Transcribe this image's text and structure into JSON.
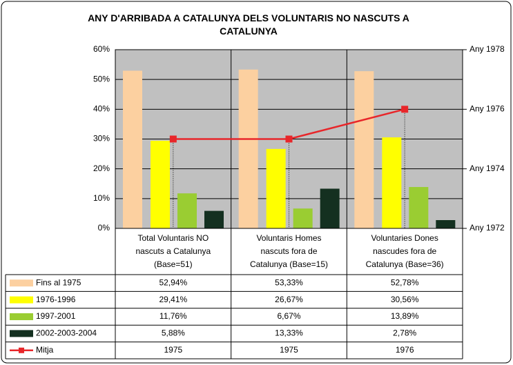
{
  "chart_data": {
    "type": "bar",
    "title": "ANY D'ARRIBADA A CATALUNYA DELS VOLUNTARIS NO NASCUTS A CATALUNYA",
    "categories": [
      "Total Voluntaris NO nascuts a Catalunya (Base=51)",
      "Voluntaris Homes nascuts fora de Catalunya (Base=15)",
      "Voluntaries Dones nascudes fora de Catalunya (Base=36)"
    ],
    "series": [
      {
        "name": "Fins al 1975",
        "color": "#fcd0a0",
        "values": [
          52.94,
          53.33,
          52.78
        ],
        "value_labels": [
          "52,94%",
          "53,33%",
          "52,78%"
        ]
      },
      {
        "name": "1976-1996",
        "color": "#ffff00",
        "values": [
          29.41,
          26.67,
          30.56
        ],
        "value_labels": [
          "29,41%",
          "26,67%",
          "30,56%"
        ]
      },
      {
        "name": "1997-2001",
        "color": "#9acd32",
        "values": [
          11.76,
          6.67,
          13.89
        ],
        "value_labels": [
          "11,76%",
          "6,67%",
          "13,89%"
        ]
      },
      {
        "name": "2002-2003-2004",
        "color": "#143020",
        "values": [
          5.88,
          13.33,
          2.78
        ],
        "value_labels": [
          "5,88%",
          "13,33%",
          "2,78%"
        ]
      },
      {
        "name": "Mitja",
        "color": "#e8262a",
        "type": "line",
        "axis": "y2",
        "values": [
          1975,
          1975,
          1976
        ]
      }
    ],
    "ylim": [
      0,
      60
    ],
    "yticks": [
      {
        "value": 0,
        "label": "0%"
      },
      {
        "value": 10,
        "label": "10%"
      },
      {
        "value": 20,
        "label": "20%"
      },
      {
        "value": 30,
        "label": "30%"
      },
      {
        "value": 40,
        "label": "40%"
      },
      {
        "value": 50,
        "label": "50%"
      },
      {
        "value": 60,
        "label": "60%"
      }
    ],
    "y2lim": [
      1972,
      1978
    ],
    "y2ticks": [
      {
        "value": 1972,
        "label": "Any 1972"
      },
      {
        "value": 1974,
        "label": "Any 1974"
      },
      {
        "value": 1976,
        "label": "Any 1976"
      },
      {
        "value": 1978,
        "label": "Any 1978"
      }
    ],
    "grid": true
  }
}
